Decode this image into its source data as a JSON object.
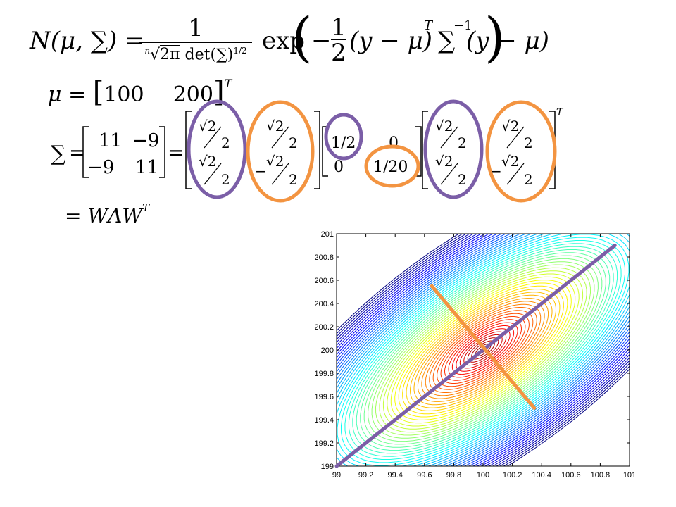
{
  "formula": {
    "lhs": "N(μ, ∑) =",
    "one": "1",
    "root_index": "n",
    "radicand": "2π",
    "det": "det(∑)",
    "det_exp": "1/2",
    "exp": "exp",
    "minus": "−",
    "half_num": "1",
    "half_den": "2",
    "term1": "(y − μ)",
    "T": "T",
    "sigma": "∑",
    "inv": "−1",
    "term2": "(y − μ)"
  },
  "mu_eq": {
    "mu": "μ",
    "eq": "=",
    "v1": "100",
    "v2": "200",
    "T": "T"
  },
  "sigma_eq": {
    "sigma": "∑",
    "eq": "=",
    "m11": "11",
    "m12": "−9",
    "m21": "−9",
    "m22": "11",
    "sqrt2": "√2",
    "two": "2",
    "neg": "−",
    "l1": "1/2",
    "l2": "1/20",
    "zero": "0",
    "T": "T"
  },
  "wlw": {
    "text": "= WΛW",
    "T": "T"
  },
  "colors": {
    "purple": "#7b5ea7",
    "orange": "#f39441"
  },
  "chart_data": {
    "type": "contour",
    "x_ticks": [
      "99",
      "99.2",
      "99.4",
      "99.6",
      "99.8",
      "100",
      "100.2",
      "100.4",
      "100.6",
      "100.8",
      "101"
    ],
    "y_ticks": [
      "199",
      "199.2",
      "199.4",
      "199.6",
      "199.8",
      "200",
      "200.2",
      "200.4",
      "200.6",
      "200.8",
      "201"
    ],
    "xlim": [
      99,
      101
    ],
    "ylim": [
      199,
      201
    ],
    "mean": [
      100,
      200
    ],
    "covariance": [
      [
        11,
        -9
      ],
      [
        -9,
        11
      ]
    ],
    "colormap": "jet",
    "overlay_lines": [
      {
        "color": "purple",
        "from": [
          99,
          199
        ],
        "to": [
          100.9,
          200.9
        ]
      },
      {
        "color": "orange",
        "from": [
          99.65,
          200.55
        ],
        "to": [
          100.35,
          199.5
        ]
      }
    ]
  }
}
